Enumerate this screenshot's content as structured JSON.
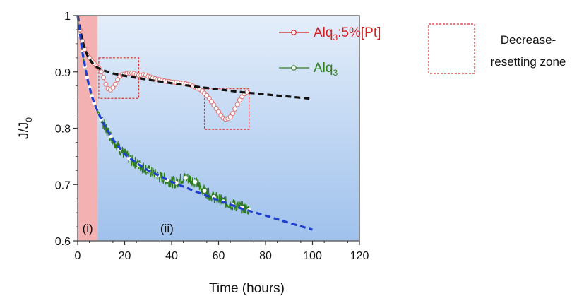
{
  "chart_data": {
    "type": "line",
    "title": "",
    "xlabel": "Time (hours)",
    "ylabel": {
      "main": "J/J",
      "sub": "0"
    },
    "xlim": [
      0,
      120
    ],
    "ylim": [
      0.6,
      1.0
    ],
    "xticks": [
      "0",
      "20",
      "40",
      "60",
      "80",
      "100",
      "120"
    ],
    "yticks": [
      "0.6",
      "0.7",
      "0.8",
      "0.9",
      "1"
    ],
    "grid": false,
    "legend_position": "top-right",
    "regions": [
      {
        "label": "(i)",
        "x_range": [
          0,
          8.5
        ],
        "color": "#f2a3a3"
      },
      {
        "label": "(ii)",
        "x_range": [
          8.5,
          120
        ],
        "color": "#a9c8ef"
      }
    ],
    "annotation_boxes": [
      {
        "x_range": [
          9,
          26
        ],
        "y_range": [
          0.853,
          0.925
        ]
      },
      {
        "x_range": [
          54,
          73
        ],
        "y_range": [
          0.798,
          0.87
        ]
      }
    ],
    "series": [
      {
        "name": {
          "main": "Alq",
          "sub": "3",
          "suffix": ":5%[Pt]"
        },
        "color": "#e07070",
        "legend_color": "#d42020",
        "marker": "open-circle",
        "x": [
          0,
          1,
          2,
          3,
          4,
          5,
          6,
          7,
          8,
          9,
          10,
          11,
          12,
          13,
          14,
          15,
          16,
          17,
          18,
          19,
          20,
          21,
          22,
          23,
          24,
          25,
          26,
          27,
          28,
          29,
          30,
          31,
          32,
          33,
          34,
          35,
          36,
          37,
          38,
          39,
          40,
          41,
          42,
          43,
          44,
          45,
          46,
          47,
          48,
          49,
          50,
          51,
          52,
          53,
          54,
          55,
          56,
          57,
          58,
          59,
          60,
          61,
          62,
          63,
          64,
          65,
          66,
          67,
          68,
          69,
          70,
          71,
          72
        ],
        "y": [
          1.0,
          0.975,
          0.955,
          0.94,
          0.93,
          0.925,
          0.92,
          0.915,
          0.91,
          0.907,
          0.9,
          0.89,
          0.878,
          0.87,
          0.868,
          0.872,
          0.878,
          0.886,
          0.892,
          0.895,
          0.896,
          0.897,
          0.898,
          0.898,
          0.897,
          0.895,
          0.894,
          0.894,
          0.895,
          0.894,
          0.892,
          0.891,
          0.889,
          0.888,
          0.887,
          0.886,
          0.885,
          0.884,
          0.883,
          0.883,
          0.882,
          0.882,
          0.881,
          0.881,
          0.88,
          0.88,
          0.879,
          0.878,
          0.877,
          0.875,
          0.873,
          0.871,
          0.869,
          0.866,
          0.862,
          0.858,
          0.853,
          0.847,
          0.841,
          0.835,
          0.829,
          0.823,
          0.818,
          0.816,
          0.817,
          0.82,
          0.826,
          0.834,
          0.842,
          0.85,
          0.856,
          0.861,
          0.864
        ]
      },
      {
        "name": {
          "main": "Alq",
          "sub": "3",
          "suffix": ""
        },
        "color": "#2e7d1c",
        "legend_color": "#2e7d1c",
        "marker": "open-circle",
        "x": [
          0,
          1,
          2,
          3,
          4,
          5,
          6,
          7,
          8,
          9,
          10,
          12,
          14,
          16,
          18,
          20,
          22,
          24,
          26,
          28,
          30,
          32,
          34,
          36,
          38,
          40,
          42,
          44,
          46,
          48,
          50,
          52,
          54,
          56,
          58,
          60,
          62,
          64,
          66,
          68,
          70,
          72,
          73
        ],
        "y": [
          1.0,
          0.965,
          0.935,
          0.91,
          0.89,
          0.872,
          0.857,
          0.845,
          0.835,
          0.825,
          0.816,
          0.8,
          0.786,
          0.774,
          0.763,
          0.754,
          0.746,
          0.74,
          0.735,
          0.73,
          0.725,
          0.72,
          0.716,
          0.712,
          0.708,
          0.705,
          0.703,
          0.71,
          0.712,
          0.71,
          0.705,
          0.697,
          0.689,
          0.683,
          0.678,
          0.674,
          0.67,
          0.667,
          0.664,
          0.662,
          0.659,
          0.657,
          0.655
        ]
      }
    ],
    "fits": [
      {
        "color": "#111111",
        "x": [
          0,
          2,
          4,
          6,
          8,
          10,
          15,
          20,
          30,
          40,
          50,
          60,
          70,
          80,
          90,
          100
        ],
        "y": [
          1.0,
          0.955,
          0.93,
          0.917,
          0.909,
          0.904,
          0.897,
          0.893,
          0.886,
          0.88,
          0.874,
          0.869,
          0.864,
          0.86,
          0.856,
          0.852
        ]
      },
      {
        "color": "#1f3fd1",
        "x": [
          0,
          2,
          4,
          6,
          8,
          10,
          15,
          20,
          25,
          30,
          40,
          50,
          60,
          70,
          80,
          90,
          100
        ],
        "y": [
          1.0,
          0.935,
          0.89,
          0.857,
          0.835,
          0.816,
          0.78,
          0.754,
          0.738,
          0.725,
          0.705,
          0.688,
          0.672,
          0.657,
          0.645,
          0.632,
          0.62
        ]
      }
    ],
    "side_legend": {
      "line1": "Decrease-",
      "line2": "resetting zone"
    }
  }
}
